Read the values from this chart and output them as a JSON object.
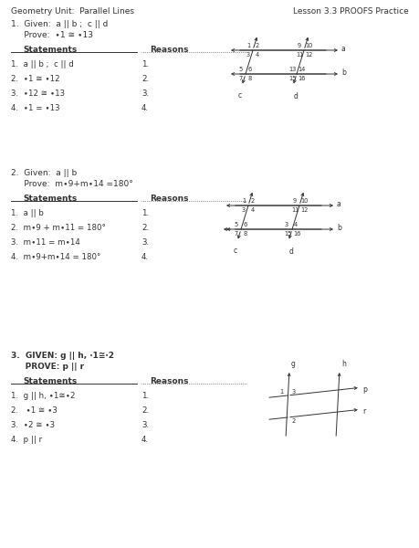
{
  "title_left": "Geometry Unit:  Parallel Lines",
  "title_right": "Lesson 3.3 PROOFS Practice",
  "bg_color": "#ffffff",
  "text_color": "#333333",
  "prob1_given": "1.  Given:  a || b ;  c || d",
  "prob1_prove": "     Prove:  ∙1 ≅ ∙13",
  "prob1_stmts": [
    "1.  a || b ;  c || d",
    "2.  ∙1 ≅ ∙12",
    "3.  ∙12 ≅ ∙13",
    "4.  ∙1 = ∙13"
  ],
  "prob1_rsns": [
    "1.",
    "2.",
    "3.",
    "4."
  ],
  "prob2_given": "2.  Given:  a || b",
  "prob2_prove": "     Prove:  m∙9+m∙14 =180°",
  "prob2_stmts": [
    "1.  a || b",
    "2.  m∙9 + m∙11 = 180°",
    "3.  m∙11 = m∙14",
    "4.  m∙9+m∙14 = 180°"
  ],
  "prob2_rsns": [
    "1.",
    "2.",
    "3.",
    "4."
  ],
  "prob3_given": "3.  GIVEN: g || h, ∙1≅∙2",
  "prob3_prove": "     PROVE: p || r",
  "prob3_stmts": [
    "1.  g || h, ∙1≅∙2",
    "2.   ∙1 ≅ ∙3",
    "3.  ∙2 ≅ ∙3",
    "4.  p || r"
  ],
  "prob3_rsns": [
    "1.",
    "2.",
    "3.",
    "4."
  ]
}
